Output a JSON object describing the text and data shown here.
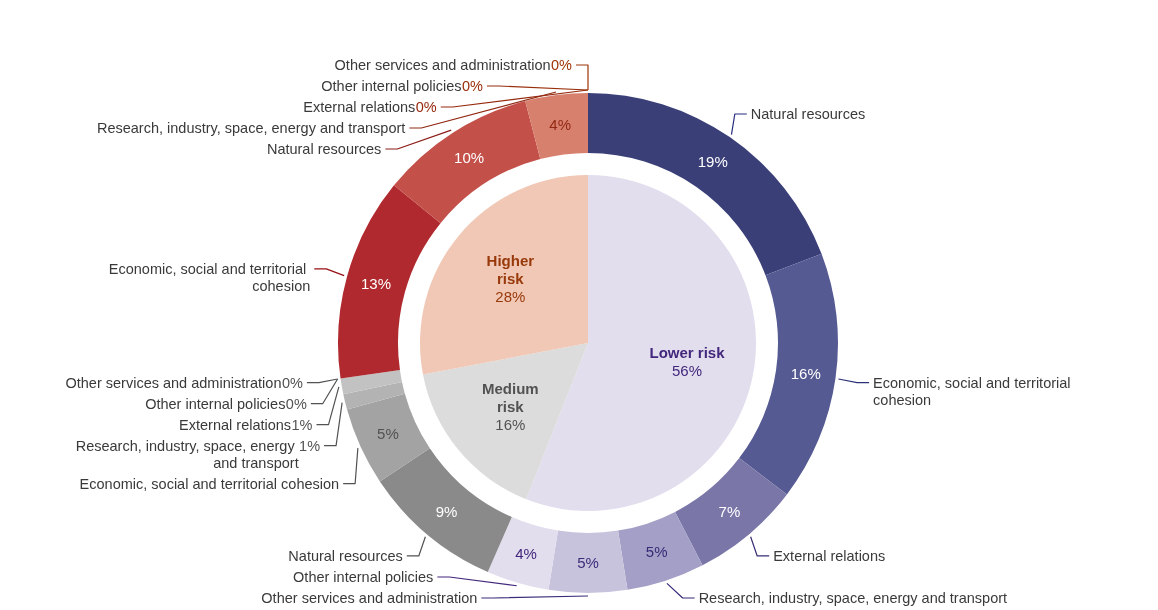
{
  "chart_data": [
    {
      "type": "pie",
      "categories": [
        "Lower risk",
        "Medium risk",
        "Higher risk"
      ],
      "values": [
        56,
        16,
        28
      ],
      "value_labels": [
        "56%",
        "16%",
        "28%"
      ],
      "colors": [
        "#e3deee",
        "#dcdcdc",
        "#f0c8b5"
      ]
    },
    {
      "type": "donut",
      "categories": [
        "Natural resources",
        "Economic, social and territorial cohesion",
        "External relations",
        "Research, industry, space, energy and transport",
        "Other services and administration",
        "Other internal policies",
        "Natural resources",
        "Economic, social and territorial cohesion",
        "Research, industry, space, energy and transport",
        "External relations",
        "Other internal policies",
        "Other services and administration",
        "Economic, social and territorial cohesion",
        "Natural resources",
        "Research, industry, space, energy and transport",
        "External relations",
        "Other internal policies",
        "Other services and administration"
      ],
      "values": [
        19,
        16,
        7,
        5,
        5,
        4,
        9,
        5,
        1,
        1,
        0,
        0,
        13,
        10,
        4,
        0,
        0,
        0
      ],
      "value_labels": [
        "19%",
        "16%",
        "7%",
        "5%",
        "5%",
        "4%",
        "9%",
        "5%",
        "1%",
        "1%",
        "0%",
        "0%",
        "13%",
        "10%",
        "4%",
        "0%",
        "0%",
        "0%"
      ],
      "colors": [
        "#3a3f78",
        "#555a92",
        "#7a76a8",
        "#a39fc6",
        "#c8c3dd",
        "#e3deee",
        "#8a8a8a",
        "#a3a3a3",
        "#b3b3b3",
        "#c2c2c2",
        "#cfcfcf",
        "#dadada",
        "#b0292e",
        "#c4504a",
        "#d8806e",
        "#e8a898",
        "#f0c0b0",
        "#f5d0c0"
      ]
    }
  ]
}
